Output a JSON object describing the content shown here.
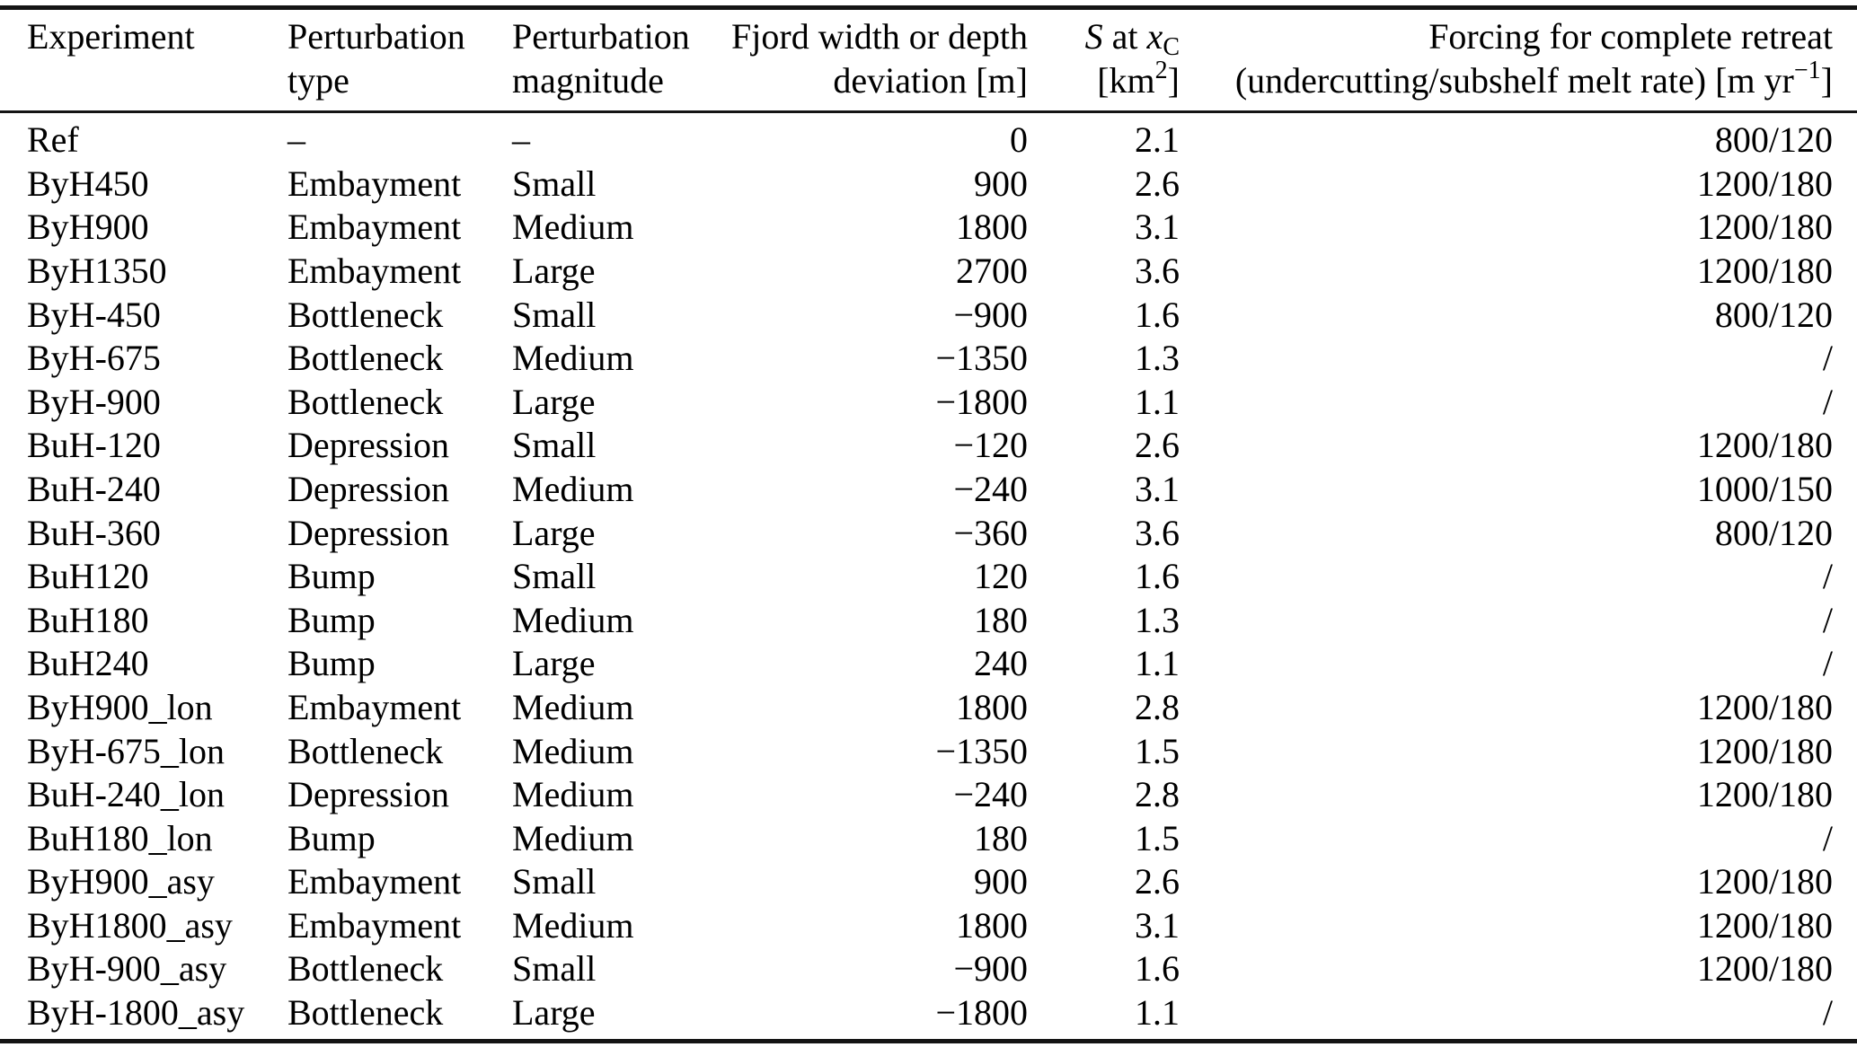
{
  "table": {
    "header": {
      "experiment_l1": "Experiment",
      "type_l1": "Perturbation",
      "type_l2": "type",
      "magnitude_l1": "Perturbation",
      "magnitude_l2": "magnitude",
      "deviation_l1": "Fjord width or depth",
      "deviation_l2": "deviation [m]",
      "s_l1_S": "S",
      "s_l1_at": " at ",
      "s_l1_x": "x",
      "s_l1_sub": "C",
      "s_l2_pre": "[km",
      "s_l2_sup": "2",
      "s_l2_post": "]",
      "forcing_l1": "Forcing for complete retreat",
      "forcing_l2_pre": "(undercutting/subshelf melt rate) [m yr",
      "forcing_l2_sup": "−1",
      "forcing_l2_post": "]"
    },
    "rows": [
      {
        "experiment": "Ref",
        "type": "–",
        "magnitude": "–",
        "deviation": "0",
        "s": "2.1",
        "forcing": "800/120"
      },
      {
        "experiment": "ByH450",
        "type": "Embayment",
        "magnitude": "Small",
        "deviation": "900",
        "s": "2.6",
        "forcing": "1200/180"
      },
      {
        "experiment": "ByH900",
        "type": "Embayment",
        "magnitude": "Medium",
        "deviation": "1800",
        "s": "3.1",
        "forcing": "1200/180"
      },
      {
        "experiment": "ByH1350",
        "type": "Embayment",
        "magnitude": "Large",
        "deviation": "2700",
        "s": "3.6",
        "forcing": "1200/180"
      },
      {
        "experiment": "ByH-450",
        "type": "Bottleneck",
        "magnitude": "Small",
        "deviation": "−900",
        "s": "1.6",
        "forcing": "800/120"
      },
      {
        "experiment": "ByH-675",
        "type": "Bottleneck",
        "magnitude": "Medium",
        "deviation": "−1350",
        "s": "1.3",
        "forcing": "/"
      },
      {
        "experiment": "ByH-900",
        "type": "Bottleneck",
        "magnitude": "Large",
        "deviation": "−1800",
        "s": "1.1",
        "forcing": "/"
      },
      {
        "experiment": "BuH-120",
        "type": "Depression",
        "magnitude": "Small",
        "deviation": "−120",
        "s": "2.6",
        "forcing": "1200/180"
      },
      {
        "experiment": "BuH-240",
        "type": "Depression",
        "magnitude": "Medium",
        "deviation": "−240",
        "s": "3.1",
        "forcing": "1000/150"
      },
      {
        "experiment": "BuH-360",
        "type": "Depression",
        "magnitude": "Large",
        "deviation": "−360",
        "s": "3.6",
        "forcing": "800/120"
      },
      {
        "experiment": "BuH120",
        "type": "Bump",
        "magnitude": "Small",
        "deviation": "120",
        "s": "1.6",
        "forcing": "/"
      },
      {
        "experiment": "BuH180",
        "type": "Bump",
        "magnitude": "Medium",
        "deviation": "180",
        "s": "1.3",
        "forcing": "/"
      },
      {
        "experiment": "BuH240",
        "type": "Bump",
        "magnitude": "Large",
        "deviation": "240",
        "s": "1.1",
        "forcing": "/"
      },
      {
        "experiment": "ByH900_lon",
        "type": "Embayment",
        "magnitude": "Medium",
        "deviation": "1800",
        "s": "2.8",
        "forcing": "1200/180"
      },
      {
        "experiment": "ByH-675_lon",
        "type": "Bottleneck",
        "magnitude": "Medium",
        "deviation": "−1350",
        "s": "1.5",
        "forcing": "1200/180"
      },
      {
        "experiment": "BuH-240_lon",
        "type": "Depression",
        "magnitude": "Medium",
        "deviation": "−240",
        "s": "2.8",
        "forcing": "1200/180"
      },
      {
        "experiment": "BuH180_lon",
        "type": "Bump",
        "magnitude": "Medium",
        "deviation": "180",
        "s": "1.5",
        "forcing": "/"
      },
      {
        "experiment": "ByH900_asy",
        "type": "Embayment",
        "magnitude": "Small",
        "deviation": "900",
        "s": "2.6",
        "forcing": "1200/180"
      },
      {
        "experiment": "ByH1800_asy",
        "type": "Embayment",
        "magnitude": "Medium",
        "deviation": "1800",
        "s": "3.1",
        "forcing": "1200/180"
      },
      {
        "experiment": "ByH-900_asy",
        "type": "Bottleneck",
        "magnitude": "Small",
        "deviation": "−900",
        "s": "1.6",
        "forcing": "1200/180"
      },
      {
        "experiment": "ByH-1800_asy",
        "type": "Bottleneck",
        "magnitude": "Large",
        "deviation": "−1800",
        "s": "1.1",
        "forcing": "/"
      }
    ]
  }
}
